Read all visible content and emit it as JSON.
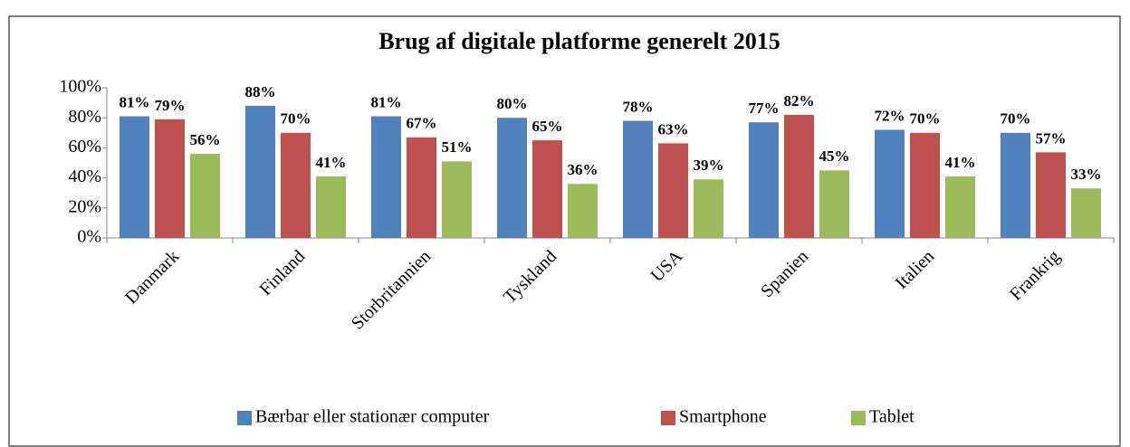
{
  "chart_data": {
    "type": "bar",
    "title": "Brug af digitale platforme generelt 2015",
    "categories": [
      "Danmark",
      "Finland",
      "Storbritannien",
      "Tyskland",
      "USA",
      "Spanien",
      "Italien",
      "Frankrig"
    ],
    "series": [
      {
        "name": "Bærbar eller stationær computer",
        "color": "#4f81bd",
        "values": [
          81,
          88,
          81,
          80,
          78,
          77,
          72,
          70
        ],
        "value_labels": [
          "81%",
          "88%",
          "81%",
          "80%",
          "78%",
          "77%",
          "72%",
          "70%"
        ]
      },
      {
        "name": "Smartphone",
        "color": "#c0504d",
        "values": [
          79,
          70,
          67,
          65,
          63,
          82,
          70,
          57
        ],
        "value_labels": [
          "79%",
          "70%",
          "67%",
          "65%",
          "63%",
          "82%",
          "70%",
          "57%"
        ]
      },
      {
        "name": "Tablet",
        "color": "#9bbb59",
        "values": [
          56,
          41,
          51,
          36,
          39,
          45,
          41,
          33
        ],
        "value_labels": [
          "56%",
          "41%",
          "51%",
          "36%",
          "39%",
          "45%",
          "41%",
          "33%"
        ]
      }
    ],
    "ylim": [
      0,
      100
    ],
    "yticks": [
      {
        "value": 0,
        "label": "0%"
      },
      {
        "value": 20,
        "label": "20%"
      },
      {
        "value": 40,
        "label": "40%"
      },
      {
        "value": 60,
        "label": "60%"
      },
      {
        "value": 80,
        "label": "80%"
      },
      {
        "value": 100,
        "label": "100%"
      }
    ],
    "legend": "bottom"
  }
}
